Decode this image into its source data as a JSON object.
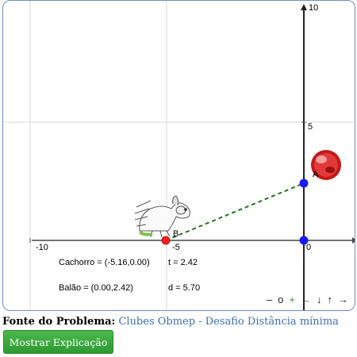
{
  "graph": {
    "x_tick_labels": [
      "-10",
      "-5",
      "0"
    ],
    "y_tick_labels": [
      "5",
      "10"
    ],
    "point_A_label": "A",
    "point_B_label": "B",
    "point_A": {
      "x": 0.0,
      "y": 2.42
    },
    "point_B": {
      "x": -5.16,
      "y": 0.0
    },
    "colors": {
      "points": "#1a1aff",
      "dog_point": "#ff2020",
      "dashed_line": "#1a7a1a",
      "grid": "#d8d8d8"
    }
  },
  "readouts": {
    "cachorro": "Cachorro = (-5.16,0.00)",
    "t": "t = 2.42",
    "balao": "Balão = (0.00,2.42)",
    "d": "d = 5.70"
  },
  "nav": {
    "minus": "–",
    "o": "o",
    "plus": "+",
    "left": "←",
    "down": "↓",
    "up": "↑",
    "right": "→"
  },
  "footer": {
    "source_label": "Fonte do Problema:",
    "source_link": "Clubes Obmep - Desafio Distância mínima",
    "button_label": "Mostrar Explicação"
  }
}
